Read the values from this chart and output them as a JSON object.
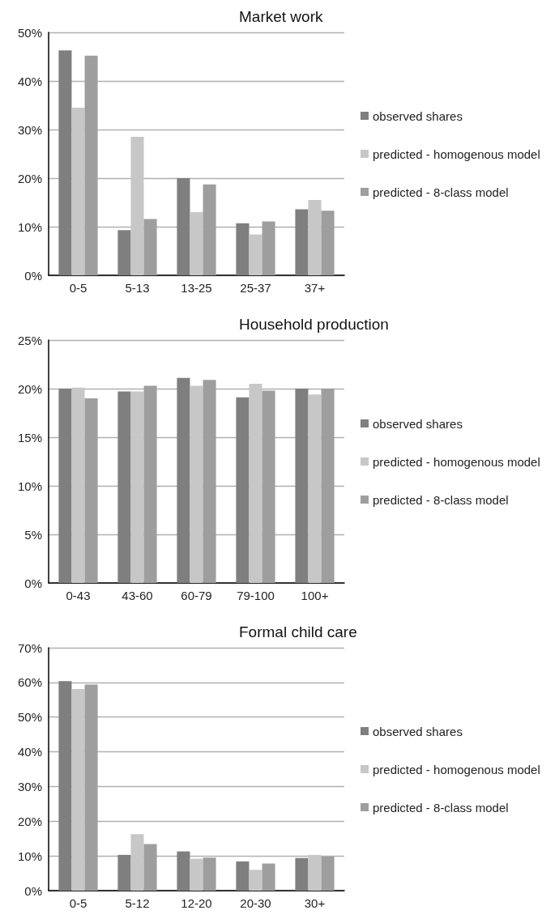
{
  "chart_data": [
    {
      "type": "bar",
      "title": "Market work",
      "categories": [
        "0-5",
        "5-13",
        "13-25",
        "25-37",
        "37+"
      ],
      "series": [
        {
          "name": "observed shares",
          "color": "#7f7f7f",
          "values": [
            46.3,
            9.3,
            20.0,
            10.7,
            13.6
          ]
        },
        {
          "name": "predicted - homogenous model",
          "color": "#c6c7c6",
          "values": [
            34.5,
            28.5,
            13.0,
            8.4,
            15.5
          ]
        },
        {
          "name": "predicted - 8-class model",
          "color": "#9d9e9d",
          "values": [
            45.2,
            11.6,
            18.7,
            11.1,
            13.3
          ]
        }
      ],
      "ylim": [
        0,
        50
      ],
      "yticks": [
        {
          "value": 0,
          "label": "0%"
        },
        {
          "value": 10,
          "label": "10%"
        },
        {
          "value": 20,
          "label": "20%"
        },
        {
          "value": 30,
          "label": "30%"
        },
        {
          "value": 40,
          "label": "40%"
        },
        {
          "value": 50,
          "label": "50%"
        }
      ],
      "grid": "y",
      "legend": "right"
    },
    {
      "type": "bar",
      "title": "Household production",
      "categories": [
        "0-43",
        "43-60",
        "60-79",
        "79-100",
        "100+"
      ],
      "series": [
        {
          "name": "observed shares",
          "color": "#7f7f7f",
          "values": [
            20.0,
            19.7,
            21.1,
            19.1,
            20.0
          ]
        },
        {
          "name": "predicted - homogenous model",
          "color": "#c6c7c6",
          "values": [
            20.1,
            19.7,
            20.3,
            20.5,
            19.4
          ]
        },
        {
          "name": "predicted - 8-class model",
          "color": "#9d9e9d",
          "values": [
            19.0,
            20.3,
            20.9,
            19.8,
            20.0
          ]
        }
      ],
      "ylim": [
        0,
        25
      ],
      "yticks": [
        {
          "value": 0,
          "label": "0%"
        },
        {
          "value": 5,
          "label": "5%"
        },
        {
          "value": 10,
          "label": "10%"
        },
        {
          "value": 15,
          "label": "15%"
        },
        {
          "value": 20,
          "label": "20%"
        },
        {
          "value": 25,
          "label": "25%"
        }
      ],
      "grid": "y",
      "legend": "right"
    },
    {
      "type": "bar",
      "title": "Formal child care",
      "categories": [
        "0-5",
        "5-12",
        "12-20",
        "20-30",
        "30+"
      ],
      "series": [
        {
          "name": "observed shares",
          "color": "#7f7f7f",
          "values": [
            60.4,
            10.3,
            11.3,
            8.4,
            9.4
          ]
        },
        {
          "name": "predicted - homogenous model",
          "color": "#c6c7c6",
          "values": [
            58.1,
            16.3,
            9.2,
            6.0,
            10.3
          ]
        },
        {
          "name": "predicted - 8-class model",
          "color": "#9d9e9d",
          "values": [
            59.4,
            13.4,
            9.5,
            7.8,
            9.8
          ]
        }
      ],
      "ylim": [
        0,
        70
      ],
      "yticks": [
        {
          "value": 0,
          "label": "0%"
        },
        {
          "value": 10,
          "label": "10%"
        },
        {
          "value": 20,
          "label": "20%"
        },
        {
          "value": 30,
          "label": "30%"
        },
        {
          "value": 40,
          "label": "40%"
        },
        {
          "value": 50,
          "label": "50%"
        },
        {
          "value": 60,
          "label": "60%"
        },
        {
          "value": 70,
          "label": "70%"
        }
      ],
      "grid": "y",
      "legend": "right"
    }
  ]
}
